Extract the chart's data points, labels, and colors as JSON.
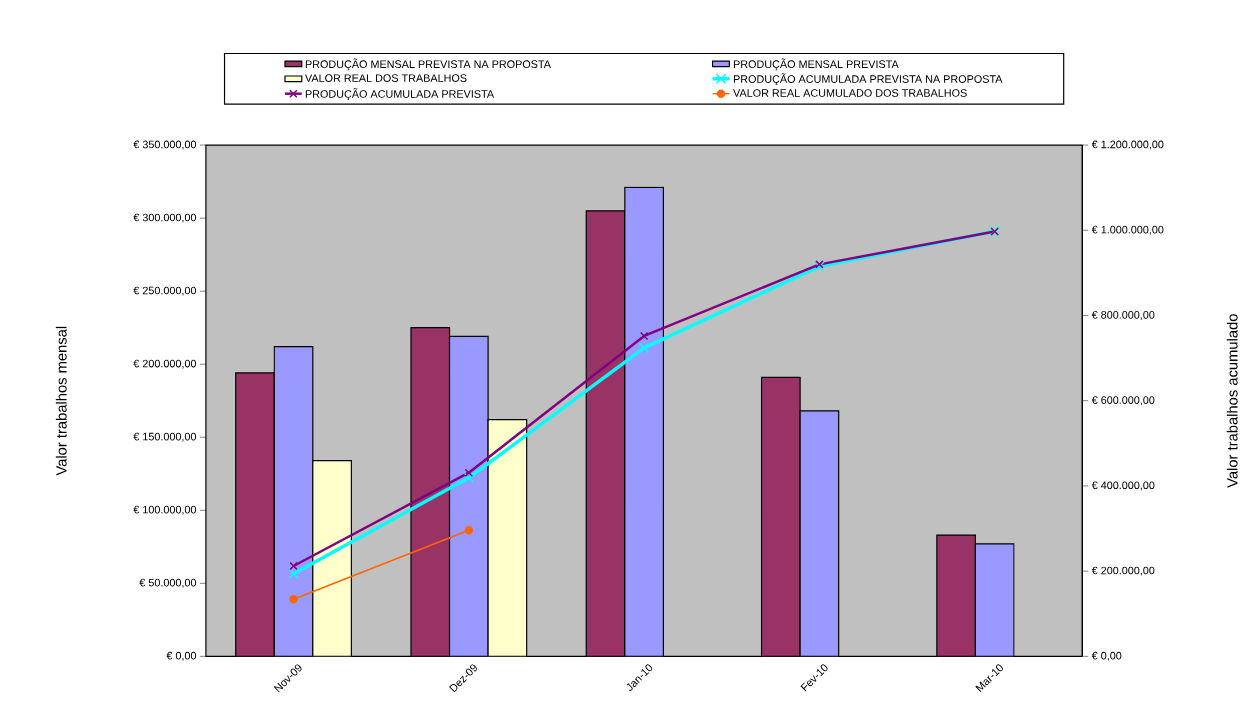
{
  "chart_data": {
    "type": "bar",
    "categories": [
      "Nov-09",
      "Dez-09",
      "Jan-10",
      "Fev-10",
      "Mar-10"
    ],
    "series": [
      {
        "name": "PRODUÇÃO MENSAL PREVISTA NA PROPOSTA",
        "color": "#993366",
        "values": [
          194000,
          225000,
          305000,
          191000,
          83000
        ]
      },
      {
        "name": "PRODUÇÃO MENSAL PREVISTA",
        "color": "#9999ff",
        "values": [
          212000,
          219000,
          321000,
          168000,
          77000
        ]
      },
      {
        "name": "VALOR REAL DOS TRABALHOS",
        "color": "#ffffcc",
        "values": [
          134000,
          162000,
          null,
          null,
          null
        ]
      },
      {
        "name": "PRODUÇÃO ACUMULADA PREVISTA NA PROPOSTA",
        "type": "line",
        "axis": "y2",
        "marker": "cross",
        "color": "#00ffff",
        "values": [
          194000,
          419000,
          724000,
          915000,
          998000
        ]
      },
      {
        "name": "PRODUÇÃO ACUMULADA PREVISTA",
        "type": "line",
        "axis": "y2",
        "marker": "cross",
        "color": "#800080",
        "values": [
          212000,
          431000,
          752000,
          920000,
          997000
        ]
      },
      {
        "name": "VALOR REAL ACUMULADO DOS TRABALHOS",
        "type": "line",
        "axis": "y2",
        "marker": "circle",
        "color": "#ff6600",
        "values": [
          134000,
          296000,
          null,
          null,
          null
        ]
      }
    ],
    "ylabel": "Valor  trabalhos  mensal",
    "y2label": "Valor  trabalhos  acumulado",
    "ylim": [
      0,
      350000
    ],
    "yticks": [
      {
        "value": 0,
        "label": "€ 0,00"
      },
      {
        "value": 50000,
        "label": "€ 50.000,00"
      },
      {
        "value": 100000,
        "label": "€ 100.000,00"
      },
      {
        "value": 150000,
        "label": "€ 150.000,00"
      },
      {
        "value": 200000,
        "label": "€ 200.000,00"
      },
      {
        "value": 250000,
        "label": "€ 250.000,00"
      },
      {
        "value": 300000,
        "label": "€ 300.000,00"
      },
      {
        "value": 350000,
        "label": "€ 350.000,00"
      }
    ],
    "y2lim": [
      0,
      1200000
    ],
    "y2ticks": [
      {
        "value": 0,
        "label": "€ 0,00"
      },
      {
        "value": 200000,
        "label": "€ 200.000,00"
      },
      {
        "value": 400000,
        "label": "€ 400.000,00"
      },
      {
        "value": 600000,
        "label": "€ 600.000,00"
      },
      {
        "value": 800000,
        "label": "€ 800.000,00"
      },
      {
        "value": 1000000,
        "label": "€ 1.000.000,00"
      },
      {
        "value": 1200000,
        "label": "€ 1.200.000,00"
      }
    ],
    "legend": "top"
  }
}
